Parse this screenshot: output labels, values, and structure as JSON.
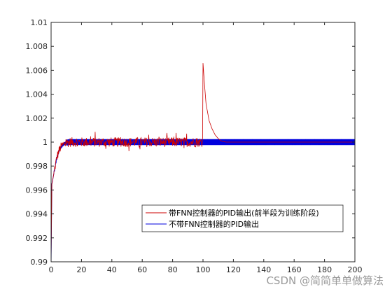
{
  "chart_data": {
    "type": "line",
    "title": "",
    "xlabel": "",
    "ylabel": "",
    "xlim": [
      0,
      200
    ],
    "ylim": [
      0.99,
      1.01
    ],
    "x_ticks": [
      0,
      20,
      40,
      60,
      80,
      100,
      120,
      140,
      160,
      180,
      200
    ],
    "y_ticks": [
      0.99,
      0.992,
      0.994,
      0.996,
      0.998,
      1,
      1.002,
      1.004,
      1.006,
      1.008,
      1.01
    ],
    "x_tick_labels": [
      "0",
      "20",
      "40",
      "60",
      "80",
      "100",
      "120",
      "140",
      "160",
      "180",
      "200"
    ],
    "y_tick_labels": [
      "0.99",
      "0.992",
      "0.994",
      "0.996",
      "0.998",
      "1",
      "1.002",
      "1.004",
      "1.006",
      "1.008",
      "1.01"
    ],
    "grid": false,
    "legend_position": "bottom-right",
    "series": [
      {
        "name": "带FNN控制器的PID输出(前半段为训练阶段)",
        "color": "#cc0000",
        "x": [
          0,
          0.5,
          1,
          2,
          3,
          4,
          5,
          6,
          8,
          10,
          12,
          15,
          20,
          30,
          40,
          50,
          60,
          70,
          80,
          90,
          99.9,
          100,
          101,
          102,
          104,
          106,
          108,
          110,
          112,
          115,
          120,
          140,
          160,
          180,
          200
        ],
        "y": [
          0.99,
          0.9965,
          0.9968,
          0.9975,
          0.9982,
          0.9988,
          0.9992,
          0.9995,
          0.9998,
          0.99995,
          1.0,
          1.0,
          1.0,
          1.0,
          1.0,
          1.0,
          1.0,
          1.0,
          1.0,
          1.0,
          1.0,
          1.0066,
          1.0048,
          1.0032,
          1.0018,
          1.0011,
          1.0006,
          1.0003,
          1.0001,
          1.0,
          1.0,
          1.0,
          1.0,
          1.0,
          1.0
        ],
        "noise_amplitude": 0.0009,
        "noise_range": [
          2,
          100
        ]
      },
      {
        "name": "不带FNN控制器的PID输出",
        "color": "#0000dd",
        "x": [
          0,
          0.5,
          1,
          2,
          3,
          4,
          5,
          6,
          8,
          10,
          12,
          15,
          20,
          40,
          60,
          80,
          100,
          120,
          140,
          160,
          180,
          200
        ],
        "y": [
          0.99,
          0.9965,
          0.9968,
          0.9975,
          0.9982,
          0.9988,
          0.9992,
          0.9995,
          0.9998,
          0.99995,
          1.0,
          1.0,
          1.0,
          1.0,
          1.0,
          1.0,
          1.0,
          1.0,
          1.0,
          1.0,
          1.0,
          1.0
        ],
        "oscillation_amplitude": 0.00025,
        "oscillation_range": [
          2,
          200
        ]
      }
    ]
  },
  "watermark": "CSDN @简简单单做算法"
}
